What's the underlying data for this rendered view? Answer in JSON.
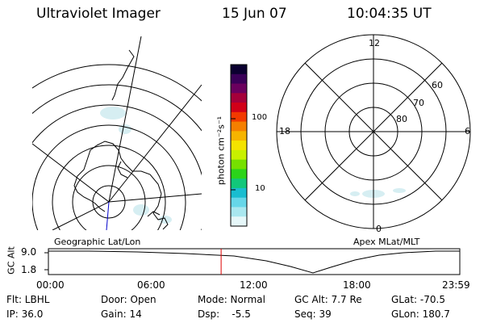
{
  "header": {
    "instrument": "Ultraviolet Imager",
    "date": "15 Jun 07",
    "time": "10:04:35 UT"
  },
  "colorbar": {
    "unit_label": "photon cm⁻²s⁻¹",
    "tick_labels": [
      "100",
      "10"
    ],
    "colors": [
      "#0b0030",
      "#3a0058",
      "#6b005e",
      "#a5003a",
      "#d10018",
      "#f23a00",
      "#f57f00",
      "#f6b400",
      "#f4e300",
      "#c8f000",
      "#76e000",
      "#2bd41a",
      "#12c77a",
      "#19bdd0",
      "#66d6e8",
      "#a9e7ef",
      "#e6f7f9"
    ]
  },
  "left_panel": {
    "caption": "Geographic Lat/Lon"
  },
  "right_panel": {
    "caption": "Apex MLat/MLT",
    "mlt_labels": [
      "12",
      "18",
      "6",
      "0"
    ],
    "lat_labels": [
      "60",
      "70",
      "80"
    ]
  },
  "altitude_strip": {
    "ylabel": "GC Alt",
    "y_ticks": [
      "9.0",
      "1.8"
    ],
    "x_ticks": [
      "00:00",
      "06:00",
      "12:00",
      "18:00",
      "23:59"
    ],
    "marker_time_hours": 10.076,
    "marker_color": "#dd0000"
  },
  "info": [
    [
      "Flt: LBHL",
      "Door: Open",
      "Mode: Normal",
      "GC Alt: 7.7 Re",
      "GLat: -70.5"
    ],
    [
      "IP: 36.0",
      "Gain: 14",
      "Dsp:    -5.5",
      "Seq: 39",
      "GLon: 180.7"
    ]
  ]
}
